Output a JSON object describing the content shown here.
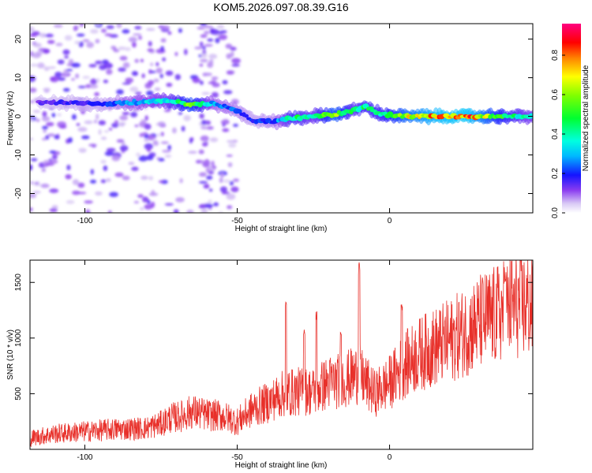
{
  "figure_title": "KOM5.2026.097.08.39.G16",
  "chart_data": [
    {
      "type": "heatmap",
      "xlabel": "Height of straight line (km)",
      "ylabel": "Frequency (Hz)",
      "xlim": [
        -118,
        47
      ],
      "ylim": [
        -25,
        24
      ],
      "xticks": [
        -100,
        -50,
        0
      ],
      "xtick_labels": [
        "-100",
        "-50",
        "0"
      ],
      "yticks": [
        -20,
        -10,
        0,
        10,
        20
      ],
      "ytick_labels": [
        "-20",
        "-10",
        "0",
        "10",
        "20"
      ],
      "colorbar": {
        "label": "Normalized spectral amplitude",
        "range": [
          0.0,
          0.96
        ],
        "ticks": [
          0.0,
          0.2,
          0.4,
          0.6,
          0.8
        ],
        "tick_labels": [
          "0.0",
          "0.2",
          "0.4",
          "0.6",
          "0.8"
        ]
      },
      "ridge": {
        "description_points": [
          {
            "x": -115,
            "y": 3.5,
            "amp": 0.15
          },
          {
            "x": -105,
            "y": 3.5,
            "amp": 0.18
          },
          {
            "x": -95,
            "y": 3.2,
            "amp": 0.2
          },
          {
            "x": -85,
            "y": 3.5,
            "amp": 0.3
          },
          {
            "x": -78,
            "y": 4.0,
            "amp": 0.35
          },
          {
            "x": -72,
            "y": 4.0,
            "amp": 0.4
          },
          {
            "x": -65,
            "y": 3.0,
            "amp": 0.65
          },
          {
            "x": -58,
            "y": 3.5,
            "amp": 0.3
          },
          {
            "x": -50,
            "y": 1.5,
            "amp": 0.25
          },
          {
            "x": -45,
            "y": -1.0,
            "amp": 0.2
          },
          {
            "x": -38,
            "y": -1.5,
            "amp": 0.25
          },
          {
            "x": -32,
            "y": -0.5,
            "amp": 0.5
          },
          {
            "x": -25,
            "y": 0.0,
            "amp": 0.4
          },
          {
            "x": -18,
            "y": 0.5,
            "amp": 0.7
          },
          {
            "x": -12,
            "y": 1.5,
            "amp": 0.45
          },
          {
            "x": -8,
            "y": 2.5,
            "amp": 0.5
          },
          {
            "x": -3,
            "y": 0.5,
            "amp": 0.5
          },
          {
            "x": 5,
            "y": 0.0,
            "amp": 0.7
          },
          {
            "x": 15,
            "y": 0.0,
            "amp": 0.85
          },
          {
            "x": 25,
            "y": 0.0,
            "amp": 0.9
          },
          {
            "x": 35,
            "y": 0.0,
            "amp": 0.6
          },
          {
            "x": 45,
            "y": 0.0,
            "amp": 0.4
          }
        ]
      }
    },
    {
      "type": "line",
      "xlabel": "Height of straight line (km)",
      "ylabel": "SNR (10 * v/v)",
      "xlim": [
        -118,
        47
      ],
      "ylim": [
        0,
        1700
      ],
      "xticks": [
        -100,
        -50,
        0
      ],
      "xtick_labels": [
        "-100",
        "-50",
        "0"
      ],
      "yticks": [
        500,
        1000,
        1500
      ],
      "ytick_labels": [
        "500",
        "1000",
        "1500"
      ],
      "line_color": "#e8302a",
      "series": [
        {
          "x": [
            -118,
            -110,
            -100,
            -90,
            -80,
            -75,
            -72,
            -68,
            -65,
            -60,
            -55,
            -50,
            -45,
            -40,
            -35,
            -30,
            -25,
            -20,
            -15,
            -10,
            -5,
            0,
            5,
            10,
            15,
            20,
            25,
            30,
            35,
            40,
            45,
            47
          ],
          "values": [
            100,
            140,
            160,
            180,
            190,
            230,
            280,
            300,
            340,
            310,
            300,
            250,
            360,
            420,
            500,
            520,
            520,
            600,
            620,
            680,
            500,
            600,
            760,
            860,
            920,
            980,
            1060,
            1150,
            1200,
            1280,
            1300,
            1280
          ]
        }
      ],
      "spikes": [
        {
          "x": -34,
          "y": 1340
        },
        {
          "x": -28,
          "y": 1120
        },
        {
          "x": -24,
          "y": 1250
        },
        {
          "x": -16,
          "y": 1120
        },
        {
          "x": -10,
          "y": 1700
        },
        {
          "x": 4,
          "y": 1350
        },
        {
          "x": 38,
          "y": 1620
        }
      ]
    }
  ]
}
